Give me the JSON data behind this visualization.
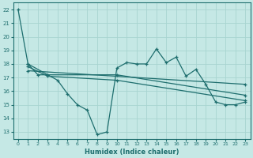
{
  "xlabel": "Humidex (Indice chaleur)",
  "bg_color": "#c5e8e5",
  "grid_color": "#a8d4d0",
  "line_color": "#1e6e6e",
  "xlim": [
    -0.5,
    23.5
  ],
  "ylim": [
    12.5,
    22.5
  ],
  "xticks": [
    0,
    1,
    2,
    3,
    4,
    5,
    6,
    7,
    8,
    9,
    10,
    11,
    12,
    13,
    14,
    15,
    16,
    17,
    18,
    19,
    20,
    21,
    22,
    23
  ],
  "yticks": [
    13,
    14,
    15,
    16,
    17,
    18,
    19,
    20,
    21,
    22
  ],
  "series1_x": [
    0,
    1,
    2,
    3,
    4,
    5,
    6,
    7,
    8,
    9,
    10,
    11,
    12,
    13,
    14,
    15,
    16,
    17,
    18,
    19,
    20,
    21,
    22,
    23
  ],
  "series1_y": [
    22.0,
    18.0,
    17.2,
    17.2,
    16.8,
    15.8,
    15.0,
    14.6,
    12.8,
    13.0,
    17.7,
    18.1,
    18.0,
    18.0,
    19.1,
    18.1,
    18.5,
    17.1,
    17.6,
    16.5,
    15.2,
    15.0,
    15.0,
    15.2
  ],
  "series2_x": [
    1,
    3,
    10,
    23
  ],
  "series2_y": [
    18.0,
    17.2,
    17.2,
    15.7
  ],
  "series3_x": [
    1,
    3,
    10,
    23
  ],
  "series3_y": [
    17.8,
    17.1,
    16.8,
    15.3
  ],
  "series4_x": [
    1,
    23
  ],
  "series4_y": [
    17.5,
    16.5
  ]
}
